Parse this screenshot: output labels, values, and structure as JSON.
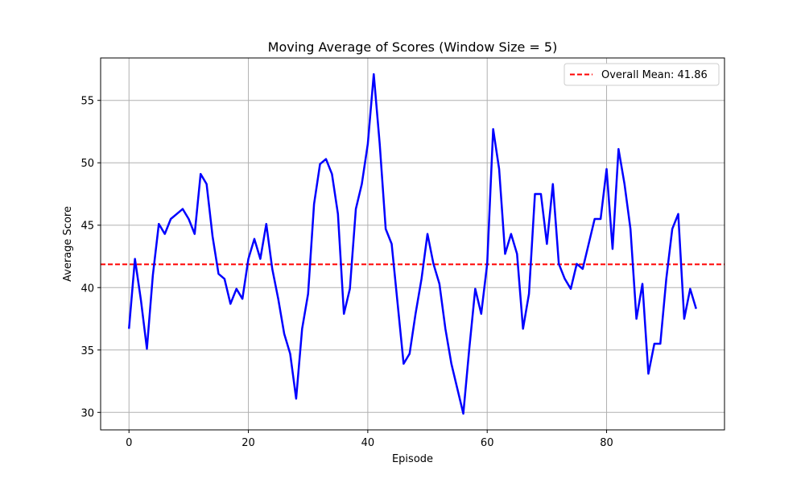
{
  "chart_data": {
    "type": "line",
    "title": "Moving Average of Scores (Window Size = 5)",
    "xlabel": "Episode",
    "ylabel": "Average Score",
    "xlim": [
      -4.75,
      99.75
    ],
    "ylim": [
      28.6,
      58.4
    ],
    "xticks": [
      0,
      20,
      40,
      60,
      80
    ],
    "yticks": [
      30,
      35,
      40,
      45,
      50,
      55
    ],
    "grid": true,
    "legend_position": "upper-right",
    "series": [
      {
        "color": "#0000ff",
        "x": [
          0,
          1,
          2,
          3,
          4,
          5,
          6,
          7,
          8,
          9,
          10,
          11,
          12,
          13,
          14,
          15,
          16,
          17,
          18,
          19,
          20,
          21,
          22,
          23,
          24,
          25,
          26,
          27,
          28,
          29,
          30,
          31,
          32,
          33,
          34,
          35,
          36,
          37,
          38,
          39,
          40,
          41,
          42,
          43,
          44,
          45,
          46,
          47,
          48,
          49,
          50,
          51,
          52,
          53,
          54,
          55,
          56,
          57,
          58,
          59,
          60,
          61,
          62,
          63,
          64,
          65,
          66,
          67,
          68,
          69,
          70,
          71,
          72,
          73,
          74,
          75,
          76,
          77,
          78,
          79,
          80,
          81,
          82,
          83,
          84,
          85,
          86,
          87,
          88,
          89,
          90,
          91,
          92,
          93,
          94,
          95
        ],
        "values": [
          36.7,
          42.3,
          39.0,
          35.1,
          41.0,
          45.1,
          44.3,
          45.5,
          45.9,
          46.3,
          45.5,
          44.3,
          49.1,
          48.3,
          44.1,
          41.1,
          40.7,
          38.7,
          39.9,
          39.1,
          42.3,
          43.9,
          42.3,
          45.1,
          41.5,
          39.1,
          36.3,
          34.7,
          31.1,
          36.7,
          39.5,
          46.7,
          49.9,
          50.3,
          49.1,
          45.9,
          37.9,
          39.9,
          46.3,
          48.3,
          51.5,
          57.1,
          51.5,
          44.7,
          43.5,
          38.7,
          33.9,
          34.7,
          37.9,
          40.7,
          44.3,
          41.9,
          40.3,
          36.7,
          33.9,
          31.9,
          29.9,
          35.1,
          39.9,
          37.9,
          41.9,
          52.7,
          49.5,
          42.7,
          44.3,
          42.7,
          36.7,
          39.5,
          47.5,
          47.5,
          43.5,
          48.3,
          41.9,
          40.7,
          39.9,
          41.9,
          41.5,
          43.5,
          45.5,
          45.5,
          49.5,
          43.1,
          51.1,
          48.3,
          44.7,
          37.5,
          40.3,
          33.1,
          35.5,
          35.5,
          40.7,
          44.7,
          45.9,
          37.5,
          39.9,
          38.3
        ]
      }
    ],
    "reference_lines": [
      {
        "label": "Overall Mean: 41.86",
        "value": 41.86,
        "color": "#ff0000",
        "style": "dashed"
      }
    ]
  }
}
